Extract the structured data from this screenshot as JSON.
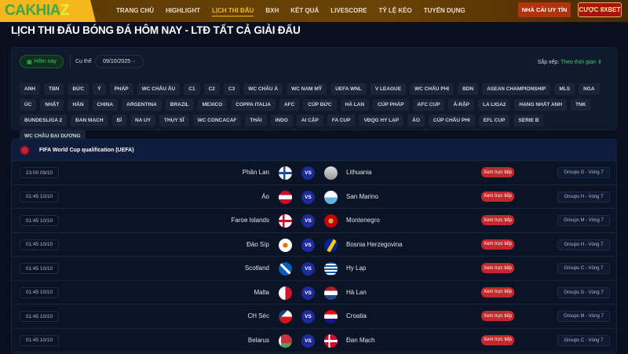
{
  "header": {
    "logo": "CAKHIAZ",
    "nav": [
      "TRANG CHỦ",
      "HIGHLIGHT",
      "LỊCH THI ĐẤU",
      "BXH",
      "KẾT QUẢ",
      "LIVESCORE",
      "TỶ LỆ KÈO",
      "TUYỂN DỤNG"
    ],
    "active_nav": "LỊCH THI ĐẤU",
    "btn_trusted": "NHÀ CÁI UY TÍN",
    "btn_bet": "CƯỢC 8XBET"
  },
  "page_title": "LỊCH THI ĐẤU BÓNG ĐÁ HÔM NAY - LTĐ TẤT CẢ GIẢI ĐẤU",
  "filter": {
    "today": "Hôm nay",
    "specific_label": "Cụ thể",
    "date": "09/10/2025",
    "sort_label": "Sắp xếp:",
    "sort_value": "Theo thời gian",
    "tags": [
      "ANH",
      "TBN",
      "ĐỨC",
      "Ý",
      "PHÁP",
      "WC CHÂU ÂU",
      "C1",
      "C2",
      "C3",
      "WC CHÂU Á",
      "WC NAM MỸ",
      "UEFA WNL",
      "V LEAGUE",
      "WC CHÂU PHI",
      "BDN",
      "ASEAN CHAMPIONSHIP",
      "MLS",
      "NGA",
      "ÚC",
      "NHẬT",
      "HÀN",
      "CHINA",
      "ARGENTINA",
      "BRAZIL",
      "MEXICO",
      "COPPA ITALIA",
      "AFC",
      "CÚP ĐỨC",
      "HÀ LAN",
      "CÚP PHÁP",
      "AFC CUP",
      "Ả-RẬP",
      "LA LIGA2",
      "HẠNG NHẤT ANH",
      "TNK",
      "BUNDESLIGA 2",
      "ĐAN MẠCH",
      "BỈ",
      "NA UY",
      "THỤY SĨ",
      "WC CONCACAF",
      "THÁI",
      "INDO",
      "AI CẬP",
      "FA CUP",
      "VĐQG HY LẠP",
      "ÁO",
      "CÚP CHÂU PHI",
      "EFL CUP",
      "SERIE B",
      "WC CHÂU ĐẠI DƯƠNG"
    ]
  },
  "league": {
    "name": "FIFA World Cup qualification (UEFA)",
    "vs": "VS",
    "live_label": "Xem trực tiếp",
    "matches": [
      {
        "time": "23:00 09/10",
        "home": "Phần Lan",
        "away": "Lithuania",
        "group": "Groups G - Vòng 7",
        "home_flag": "finland",
        "away_flag": "lithuania-crest"
      },
      {
        "time": "01:45 10/10",
        "home": "Áo",
        "away": "San Marino",
        "group": "Groups H - Vòng 7",
        "home_flag": "austria",
        "away_flag": "san-marino"
      },
      {
        "time": "01:45 10/10",
        "home": "Faroe Islands",
        "away": "Montenegro",
        "group": "Groups M - Vòng 7",
        "home_flag": "faroe",
        "away_flag": "montenegro"
      },
      {
        "time": "01:45 10/10",
        "home": "Đảo Síp",
        "away": "Bosnia Herzegovina",
        "group": "Groups H - Vòng 7",
        "home_flag": "cyprus",
        "away_flag": "bosnia"
      },
      {
        "time": "01:45 10/10",
        "home": "Scotland",
        "away": "Hy Lạp",
        "group": "Groups C - Vòng 7",
        "home_flag": "scotland",
        "away_flag": "greece"
      },
      {
        "time": "01:45 10/10",
        "home": "Malta",
        "away": "Hà Lan",
        "group": "Groups G - Vòng 7",
        "home_flag": "malta",
        "away_flag": "netherlands"
      },
      {
        "time": "01:45 10/10",
        "home": "CH Séc",
        "away": "Croatia",
        "group": "Groups M - Vòng 7",
        "home_flag": "czech",
        "away_flag": "croatia"
      },
      {
        "time": "01:45 10/10",
        "home": "Belarus",
        "away": "Đan Mạch",
        "group": "Groups C - Vòng 7",
        "home_flag": "belarus",
        "away_flag": "denmark"
      }
    ]
  }
}
